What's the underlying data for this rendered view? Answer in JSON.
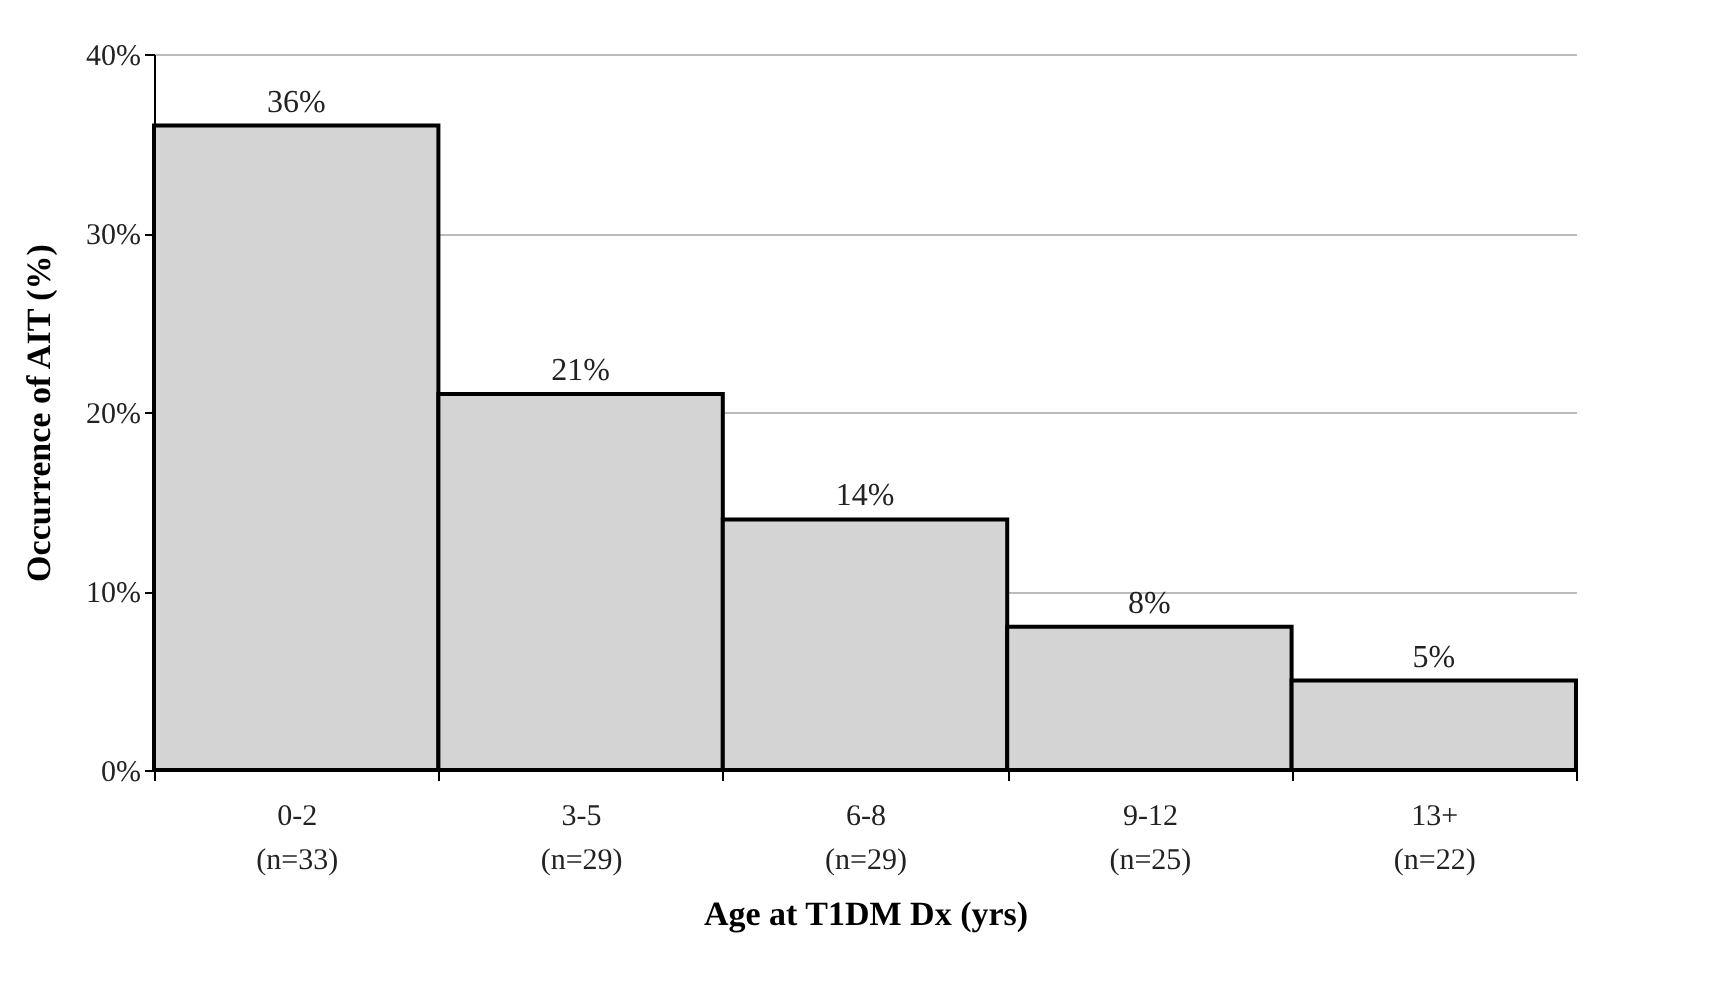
{
  "chart_data": {
    "type": "bar",
    "xlabel": "Age at T1DM Dx (yrs)",
    "ylabel": "Occurrence of AIT (%)",
    "categories": [
      "0-2\n(n=33)",
      "3-5\n(n=29)",
      "6-8\n(n=29)",
      "9-12\n(n=25)",
      "13+\n(n=22)"
    ],
    "values": [
      36,
      21,
      14,
      8,
      5
    ],
    "value_labels": [
      "36%",
      "21%",
      "14%",
      "8%",
      "5%"
    ],
    "color": "#d4d4d4",
    "ylim": [
      0,
      40
    ],
    "yticks": [
      {
        "value": 0,
        "label": "0%"
      },
      {
        "value": 10,
        "label": "10%"
      },
      {
        "value": 20,
        "label": "20%"
      },
      {
        "value": 30,
        "label": "30%"
      },
      {
        "value": 40,
        "label": "40%"
      }
    ],
    "grid": "y"
  }
}
